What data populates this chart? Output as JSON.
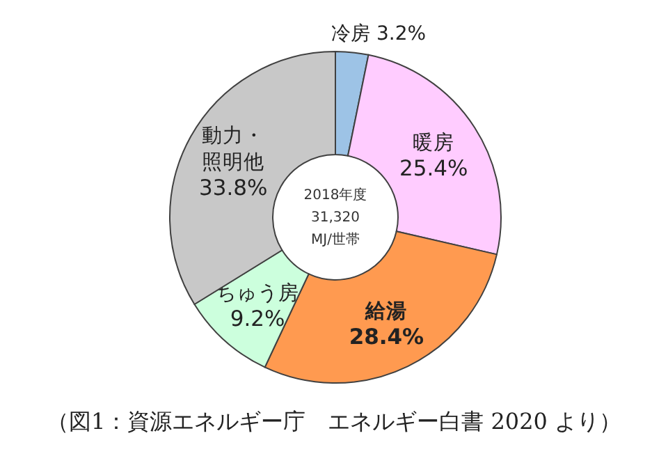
{
  "chart_data": {
    "type": "donut",
    "categories": [
      "冷房",
      "暖房",
      "給湯",
      "ちゅう房",
      "動力・照明他"
    ],
    "values": [
      3.2,
      25.4,
      28.4,
      9.2,
      33.8
    ],
    "colors": [
      "#9dc3e6",
      "#ffccff",
      "#ff9a50",
      "#ccffdd",
      "#c8c8c8"
    ],
    "value_labels": [
      "3.2%",
      "25.4%",
      "28.4%",
      "9.2%",
      "33.8%"
    ],
    "annotations": [
      "2018年度",
      "31,320",
      "MJ/世帯",
      "（図1：資源エネルギー庁　エネルギー白書 2020 より）"
    ]
  }
}
